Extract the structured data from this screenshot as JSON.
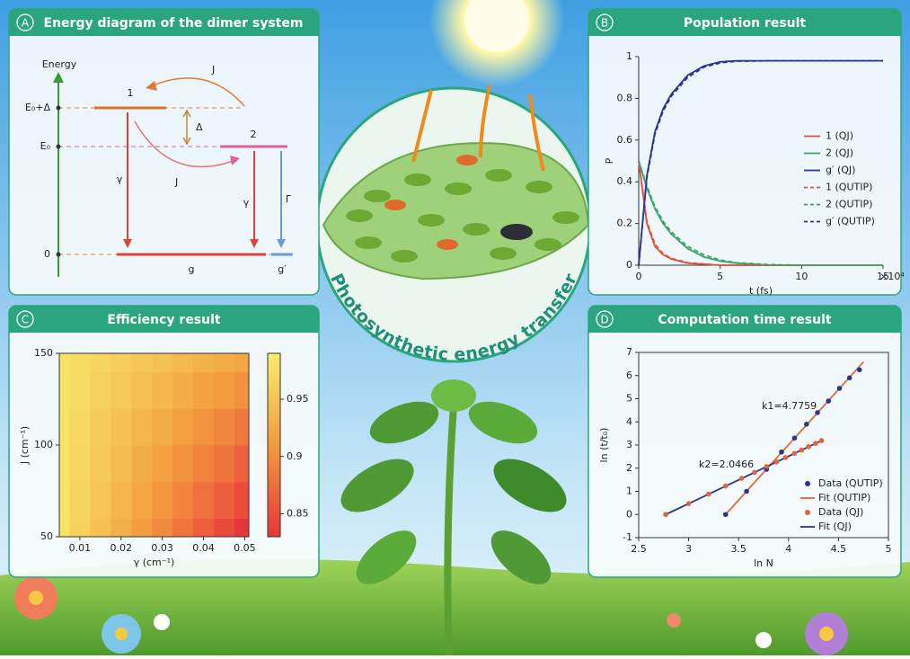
{
  "diagram": {
    "label": "A",
    "title": "Energy diagram of the dimer system",
    "axis_label": "Energy",
    "levels": [
      "E₀+Δ",
      "E₀",
      "0"
    ],
    "states": [
      "1",
      "2",
      "g",
      "g′"
    ],
    "couplings": [
      "J",
      "J"
    ],
    "gap": "Δ",
    "decays": [
      "γ",
      "γ",
      "Γ"
    ]
  },
  "center_label": "Photosynthetic energy transfer",
  "chart_data": [
    {
      "label": "B",
      "type": "line",
      "title": "Population result",
      "x_label": "t (fs)",
      "x_multiplier": "×10⁴",
      "y_label": "P",
      "x": [
        0,
        0.5,
        1,
        1.5,
        2,
        3,
        4,
        5,
        6,
        8,
        10,
        12,
        15
      ],
      "series": [
        {
          "name": "1 (QJ)",
          "color": "#d9533f",
          "style": "solid",
          "values": [
            0.5,
            0.2,
            0.09,
            0.05,
            0.03,
            0.01,
            0.005,
            0,
            0,
            0,
            0,
            0,
            0
          ]
        },
        {
          "name": "2 (QJ)",
          "color": "#3aa56a",
          "style": "solid",
          "values": [
            0.5,
            0.37,
            0.27,
            0.2,
            0.15,
            0.08,
            0.04,
            0.02,
            0.01,
            0,
            0,
            0,
            0
          ]
        },
        {
          "name": "g′ (QJ)",
          "color": "#2a3590",
          "style": "solid",
          "values": [
            0,
            0.43,
            0.64,
            0.75,
            0.82,
            0.91,
            0.955,
            0.975,
            0.98,
            0.98,
            0.98,
            0.98,
            0.98
          ]
        },
        {
          "name": "1 (QUTIP)",
          "color": "#d9533f",
          "style": "dashed",
          "values": [
            0.5,
            0.21,
            0.1,
            0.055,
            0.033,
            0.012,
            0.006,
            0,
            0,
            0,
            0,
            0,
            0
          ]
        },
        {
          "name": "2 (QUTIP)",
          "color": "#3aa56a",
          "style": "dashed",
          "values": [
            0.5,
            0.38,
            0.28,
            0.21,
            0.16,
            0.09,
            0.05,
            0.025,
            0.012,
            0.003,
            0,
            0,
            0
          ]
        },
        {
          "name": "g′ (QUTIP)",
          "color": "#2a3590",
          "style": "dashed",
          "values": [
            0,
            0.42,
            0.63,
            0.74,
            0.81,
            0.9,
            0.95,
            0.97,
            0.978,
            0.98,
            0.98,
            0.98,
            0.98
          ]
        }
      ],
      "xlim": [
        0,
        15
      ],
      "ylim": [
        0,
        1
      ],
      "xticks": [
        0,
        5,
        10,
        15
      ],
      "yticks": [
        0,
        0.2,
        0.4,
        0.6,
        0.8,
        1
      ],
      "legend": "center right"
    },
    {
      "label": "C",
      "type": "heatmap",
      "title": "Efficiency result",
      "x_label": "γ (cm⁻¹)",
      "y_label": "J (cm⁻¹)",
      "x": [
        0.005,
        0.01,
        0.015,
        0.02,
        0.025,
        0.03,
        0.035,
        0.04,
        0.045,
        0.05
      ],
      "y": [
        50,
        70,
        90,
        110,
        130,
        150
      ],
      "z": [
        [
          0.98,
          0.963,
          0.947,
          0.93,
          0.913,
          0.897,
          0.88,
          0.863,
          0.847,
          0.83
        ],
        [
          0.98,
          0.965,
          0.951,
          0.936,
          0.921,
          0.907,
          0.892,
          0.877,
          0.863,
          0.848
        ],
        [
          0.98,
          0.967,
          0.955,
          0.942,
          0.929,
          0.917,
          0.904,
          0.891,
          0.879,
          0.866
        ],
        [
          0.98,
          0.969,
          0.959,
          0.948,
          0.937,
          0.927,
          0.916,
          0.905,
          0.895,
          0.884
        ],
        [
          0.98,
          0.971,
          0.963,
          0.954,
          0.945,
          0.937,
          0.928,
          0.919,
          0.911,
          0.902
        ],
        [
          0.98,
          0.973,
          0.967,
          0.96,
          0.953,
          0.947,
          0.94,
          0.933,
          0.927,
          0.92
        ]
      ],
      "xlim": [
        0.005,
        0.051
      ],
      "ylim": [
        50,
        150
      ],
      "xticks": [
        0.01,
        0.02,
        0.03,
        0.04,
        0.05
      ],
      "yticks": [
        50,
        100,
        150
      ],
      "zlim": [
        0.83,
        0.99
      ],
      "colorbar_ticks": [
        0.85,
        0.9,
        0.95
      ],
      "colormap": [
        "#e8353b",
        "#f39a3e",
        "#f8ee6c"
      ]
    },
    {
      "label": "D",
      "type": "scatter",
      "title": "Computation time result",
      "x_label": "ln N",
      "y_label": "ln (t/t₀)",
      "series": [
        {
          "name": "Data (QUTIP)",
          "color": "#2a3590",
          "mode": "markers",
          "x": [
            3.37,
            3.58,
            3.78,
            3.93,
            4.06,
            4.18,
            4.29,
            4.4,
            4.51,
            4.61,
            4.71
          ],
          "values": [
            0,
            1.0,
            1.95,
            2.7,
            3.3,
            3.9,
            4.4,
            4.9,
            5.45,
            5.9,
            6.25
          ]
        },
        {
          "name": "Fit (QUTIP)",
          "color": "#e06a3c",
          "mode": "line",
          "x": [
            3.37,
            4.75
          ],
          "values": [
            0,
            6.59
          ]
        },
        {
          "name": "Data (QJ)",
          "color": "#d9673f",
          "mode": "markers",
          "x": [
            2.77,
            3.0,
            3.2,
            3.37,
            3.53,
            3.66,
            3.78,
            3.88,
            3.97,
            4.06,
            4.13,
            4.2,
            4.27,
            4.33
          ],
          "values": [
            0,
            0.47,
            0.88,
            1.23,
            1.56,
            1.82,
            2.07,
            2.27,
            2.46,
            2.64,
            2.78,
            2.93,
            3.07,
            3.19
          ]
        },
        {
          "name": "Fit (QJ)",
          "color": "#2a3590",
          "mode": "line",
          "x": [
            2.77,
            4.35
          ],
          "values": [
            0,
            3.23
          ]
        }
      ],
      "annotations": [
        "k1=4.7759",
        "k2=2.0466"
      ],
      "xlim": [
        2.5,
        5
      ],
      "ylim": [
        -1,
        7
      ],
      "xticks": [
        2.5,
        3,
        3.5,
        4,
        4.5,
        5
      ],
      "yticks": [
        -1,
        0,
        1,
        2,
        3,
        4,
        5,
        6,
        7
      ],
      "legend": "lower right"
    }
  ]
}
